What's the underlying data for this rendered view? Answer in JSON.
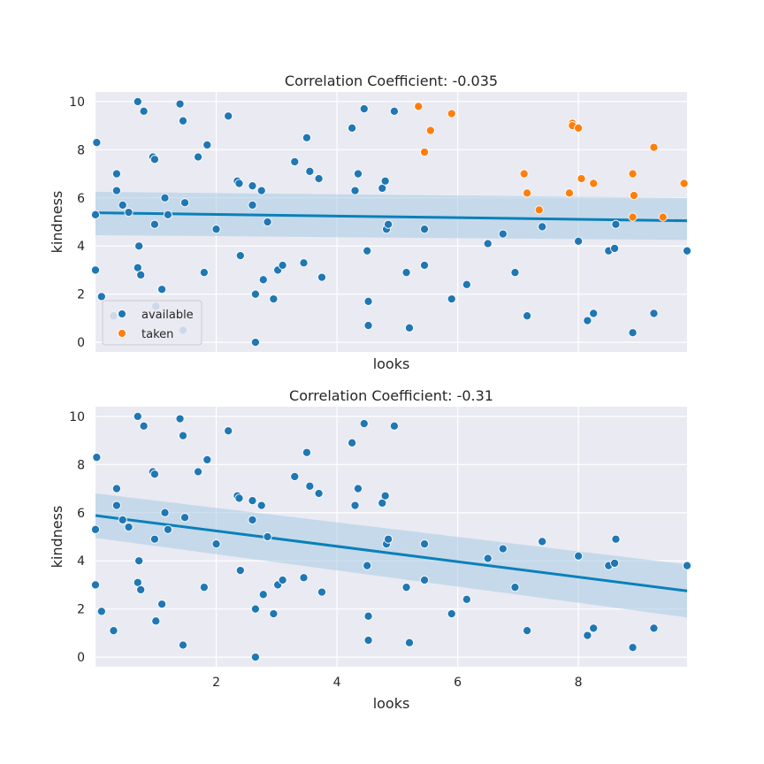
{
  "colors": {
    "background": "#eaeaf2",
    "grid": "#ffffff",
    "available": "#1f77b4",
    "taken": "#ff7f0e",
    "regression_line": "#0a80b9",
    "confidence_band": "#a6cbe3"
  },
  "chart_data": [
    {
      "type": "scatter",
      "title": "Correlation Coefficient: -0.035",
      "xlabel": "looks",
      "ylabel": "kindness",
      "xlim": [
        0.0,
        9.8
      ],
      "ylim": [
        -0.4,
        10.4
      ],
      "xticks": [
        2,
        4,
        6,
        8
      ],
      "xtick_labels_visible": false,
      "yticks": [
        0,
        2,
        4,
        6,
        8,
        10
      ],
      "grid": true,
      "legend": {
        "position": "lower-left",
        "entries": [
          {
            "label": "available",
            "color_key": "available"
          },
          {
            "label": "taken",
            "color_key": "taken"
          }
        ]
      },
      "regression": {
        "x": [
          0.0,
          9.8
        ],
        "y": [
          5.38,
          5.05
        ],
        "ci_lower": [
          4.45,
          4.25
        ],
        "ci_upper": [
          6.25,
          6.0
        ]
      },
      "series": [
        {
          "name": "available",
          "color_key": "available",
          "points": [
            [
              0.0,
              5.3
            ],
            [
              0.02,
              8.3
            ],
            [
              0.0,
              3.0
            ],
            [
              0.1,
              1.9
            ],
            [
              0.3,
              1.1
            ],
            [
              0.35,
              6.3
            ],
            [
              0.35,
              7.0
            ],
            [
              0.45,
              5.7
            ],
            [
              0.55,
              5.4
            ],
            [
              0.7,
              3.1
            ],
            [
              0.7,
              10.0
            ],
            [
              0.72,
              4.0
            ],
            [
              0.75,
              2.8
            ],
            [
              0.8,
              9.6
            ],
            [
              0.95,
              7.7
            ],
            [
              0.98,
              7.6
            ],
            [
              1.0,
              1.5
            ],
            [
              0.98,
              4.9
            ],
            [
              1.1,
              2.2
            ],
            [
              1.15,
              6.0
            ],
            [
              1.2,
              5.3
            ],
            [
              1.4,
              9.9
            ],
            [
              1.45,
              9.2
            ],
            [
              1.45,
              0.5
            ],
            [
              1.48,
              5.8
            ],
            [
              1.7,
              7.7
            ],
            [
              1.8,
              2.9
            ],
            [
              1.85,
              8.2
            ],
            [
              2.0,
              4.7
            ],
            [
              2.2,
              9.4
            ],
            [
              2.35,
              6.7
            ],
            [
              2.38,
              6.6
            ],
            [
              2.4,
              3.6
            ],
            [
              2.6,
              5.7
            ],
            [
              2.6,
              6.5
            ],
            [
              2.65,
              2.0
            ],
            [
              2.65,
              0.0
            ],
            [
              2.75,
              6.3
            ],
            [
              2.78,
              2.6
            ],
            [
              2.85,
              5.0
            ],
            [
              2.95,
              1.8
            ],
            [
              3.02,
              3.0
            ],
            [
              3.1,
              3.2
            ],
            [
              3.3,
              7.5
            ],
            [
              3.45,
              3.3
            ],
            [
              3.5,
              8.5
            ],
            [
              3.55,
              7.1
            ],
            [
              3.7,
              6.8
            ],
            [
              3.75,
              2.7
            ],
            [
              4.25,
              8.9
            ],
            [
              4.3,
              6.3
            ],
            [
              4.35,
              7.0
            ],
            [
              4.45,
              9.7
            ],
            [
              4.5,
              3.8
            ],
            [
              4.52,
              1.7
            ],
            [
              4.52,
              0.7
            ],
            [
              4.75,
              6.4
            ],
            [
              4.8,
              6.7
            ],
            [
              4.82,
              4.7
            ],
            [
              4.85,
              4.9
            ],
            [
              4.95,
              9.6
            ],
            [
              5.15,
              2.9
            ],
            [
              5.2,
              0.6
            ],
            [
              5.45,
              4.7
            ],
            [
              5.45,
              3.2
            ],
            [
              5.9,
              1.8
            ],
            [
              6.15,
              2.4
            ],
            [
              6.5,
              4.1
            ],
            [
              6.75,
              4.5
            ],
            [
              6.95,
              2.9
            ],
            [
              7.15,
              1.1
            ],
            [
              7.4,
              4.8
            ],
            [
              8.0,
              4.2
            ],
            [
              8.15,
              0.9
            ],
            [
              8.25,
              1.2
            ],
            [
              8.5,
              3.8
            ],
            [
              8.6,
              3.9
            ],
            [
              8.62,
              4.9
            ],
            [
              8.9,
              0.4
            ],
            [
              9.25,
              1.2
            ],
            [
              9.8,
              3.8
            ]
          ]
        },
        {
          "name": "taken",
          "color_key": "taken",
          "points": [
            [
              5.35,
              9.8
            ],
            [
              5.45,
              7.9
            ],
            [
              5.55,
              8.8
            ],
            [
              5.9,
              9.5
            ],
            [
              7.1,
              7.0
            ],
            [
              7.15,
              6.2
            ],
            [
              7.35,
              5.5
            ],
            [
              7.85,
              6.2
            ],
            [
              7.9,
              9.1
            ],
            [
              7.9,
              9.0
            ],
            [
              8.0,
              8.9
            ],
            [
              8.05,
              6.8
            ],
            [
              8.25,
              6.6
            ],
            [
              8.9,
              7.0
            ],
            [
              8.92,
              6.1
            ],
            [
              8.9,
              5.2
            ],
            [
              9.25,
              8.1
            ],
            [
              9.4,
              5.2
            ],
            [
              9.75,
              6.6
            ]
          ]
        }
      ]
    },
    {
      "type": "scatter",
      "title": "Correlation Coefficient: -0.31",
      "xlabel": "looks",
      "ylabel": "kindness",
      "xlim": [
        0.0,
        9.8
      ],
      "ylim": [
        -0.4,
        10.4
      ],
      "xticks": [
        2,
        4,
        6,
        8
      ],
      "xtick_labels": [
        "2",
        "4",
        "6",
        "8"
      ],
      "yticks": [
        0,
        2,
        4,
        6,
        8,
        10
      ],
      "grid": true,
      "regression": {
        "x": [
          0.0,
          9.8
        ],
        "y": [
          5.88,
          2.75
        ],
        "ci_lower": [
          4.95,
          1.65
        ],
        "ci_upper": [
          6.8,
          3.85
        ]
      },
      "series": [
        {
          "name": "available",
          "color_key": "available",
          "points": [
            [
              0.0,
              5.3
            ],
            [
              0.02,
              8.3
            ],
            [
              0.0,
              3.0
            ],
            [
              0.1,
              1.9
            ],
            [
              0.3,
              1.1
            ],
            [
              0.35,
              6.3
            ],
            [
              0.35,
              7.0
            ],
            [
              0.45,
              5.7
            ],
            [
              0.55,
              5.4
            ],
            [
              0.7,
              3.1
            ],
            [
              0.7,
              10.0
            ],
            [
              0.72,
              4.0
            ],
            [
              0.75,
              2.8
            ],
            [
              0.8,
              9.6
            ],
            [
              0.95,
              7.7
            ],
            [
              0.98,
              7.6
            ],
            [
              1.0,
              1.5
            ],
            [
              0.98,
              4.9
            ],
            [
              1.1,
              2.2
            ],
            [
              1.15,
              6.0
            ],
            [
              1.2,
              5.3
            ],
            [
              1.4,
              9.9
            ],
            [
              1.45,
              9.2
            ],
            [
              1.45,
              0.5
            ],
            [
              1.48,
              5.8
            ],
            [
              1.7,
              7.7
            ],
            [
              1.8,
              2.9
            ],
            [
              1.85,
              8.2
            ],
            [
              2.0,
              4.7
            ],
            [
              2.2,
              9.4
            ],
            [
              2.35,
              6.7
            ],
            [
              2.38,
              6.6
            ],
            [
              2.4,
              3.6
            ],
            [
              2.6,
              5.7
            ],
            [
              2.6,
              6.5
            ],
            [
              2.65,
              2.0
            ],
            [
              2.65,
              0.0
            ],
            [
              2.75,
              6.3
            ],
            [
              2.78,
              2.6
            ],
            [
              2.85,
              5.0
            ],
            [
              2.95,
              1.8
            ],
            [
              3.02,
              3.0
            ],
            [
              3.1,
              3.2
            ],
            [
              3.3,
              7.5
            ],
            [
              3.45,
              3.3
            ],
            [
              3.5,
              8.5
            ],
            [
              3.55,
              7.1
            ],
            [
              3.7,
              6.8
            ],
            [
              3.75,
              2.7
            ],
            [
              4.25,
              8.9
            ],
            [
              4.3,
              6.3
            ],
            [
              4.35,
              7.0
            ],
            [
              4.45,
              9.7
            ],
            [
              4.5,
              3.8
            ],
            [
              4.52,
              1.7
            ],
            [
              4.52,
              0.7
            ],
            [
              4.75,
              6.4
            ],
            [
              4.8,
              6.7
            ],
            [
              4.82,
              4.7
            ],
            [
              4.85,
              4.9
            ],
            [
              4.95,
              9.6
            ],
            [
              5.15,
              2.9
            ],
            [
              5.2,
              0.6
            ],
            [
              5.45,
              4.7
            ],
            [
              5.45,
              3.2
            ],
            [
              5.9,
              1.8
            ],
            [
              6.15,
              2.4
            ],
            [
              6.5,
              4.1
            ],
            [
              6.75,
              4.5
            ],
            [
              6.95,
              2.9
            ],
            [
              7.15,
              1.1
            ],
            [
              7.4,
              4.8
            ],
            [
              8.0,
              4.2
            ],
            [
              8.15,
              0.9
            ],
            [
              8.25,
              1.2
            ],
            [
              8.5,
              3.8
            ],
            [
              8.6,
              3.9
            ],
            [
              8.62,
              4.9
            ],
            [
              8.9,
              0.4
            ],
            [
              9.25,
              1.2
            ],
            [
              9.8,
              3.8
            ]
          ]
        }
      ]
    }
  ]
}
